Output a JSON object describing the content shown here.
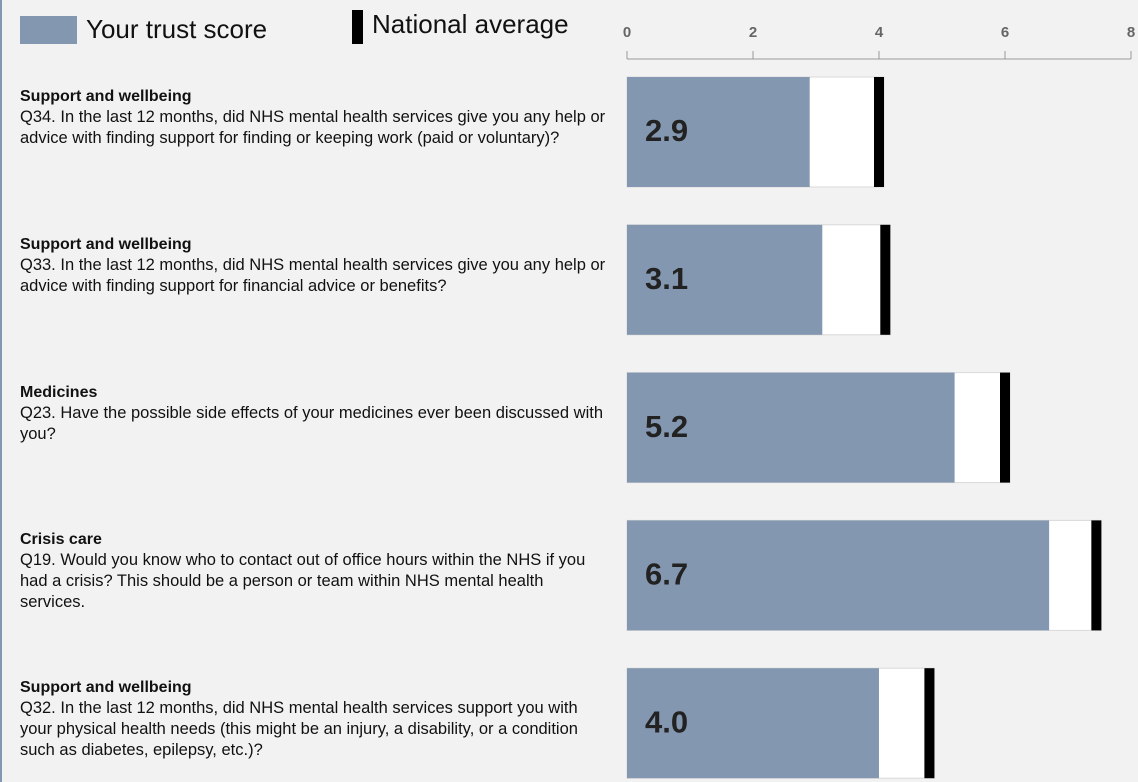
{
  "chart_data": {
    "type": "bullet",
    "categories": [
      "Support and wellbeing",
      "Support and wellbeing",
      "Medicines",
      "Crisis care",
      "Support and wellbeing"
    ],
    "questions": [
      "Q34. In the last 12 months, did NHS mental health services give you any help or advice with finding support for finding or keeping work (paid or voluntary)?",
      "Q33. In the last 12 months, did NHS mental health services give you any help or advice with finding support for financial advice or benefits?",
      "Q23. Have the possible side effects of your medicines ever been discussed with you?",
      "Q19. Would you know who to contact out of office hours within the NHS if you had a crisis? This should be a person or team within NHS mental health services.",
      "Q32. In the last 12 months, did NHS mental health services support you with your physical health needs (this might be an injury, a disability, or a condition such as diabetes, epilepsy, etc.)?"
    ],
    "series": [
      {
        "name": "Your trust score",
        "color": "#8497b0",
        "values": [
          2.9,
          3.1,
          5.2,
          6.7,
          4.0
        ],
        "value_labels": [
          "2.9",
          "3.1",
          "5.2",
          "6.7",
          "4.0"
        ]
      },
      {
        "name": "National average",
        "color": "#000000",
        "values": [
          4.0,
          4.1,
          6.0,
          7.45,
          4.8
        ]
      }
    ],
    "xlim": [
      0,
      8
    ],
    "xticks": [
      0,
      2,
      4,
      6,
      8
    ]
  }
}
